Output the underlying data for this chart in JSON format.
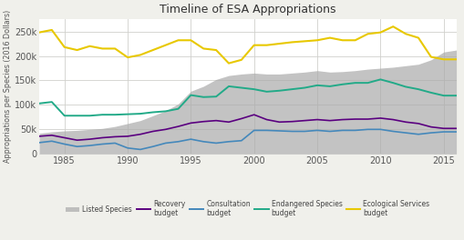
{
  "title": "Timeline of ESA Appropriations",
  "ylabel": "Appropriations per Species (2016 Dollars)",
  "xlim": [
    1983,
    2016
  ],
  "ylim": [
    0,
    275000
  ],
  "yticks": [
    0,
    50000,
    100000,
    150000,
    200000,
    250000
  ],
  "ytick_labels": [
    "0",
    "50k",
    "100k",
    "150k",
    "200k",
    "250k"
  ],
  "xticks": [
    1985,
    1990,
    1995,
    2000,
    2005,
    2010,
    2015
  ],
  "background_color": "#f0f0eb",
  "plot_bg_color": "#ffffff",
  "grid_color": "#d0d0cc",
  "years": [
    1983,
    1984,
    1985,
    1986,
    1987,
    1988,
    1989,
    1990,
    1991,
    1992,
    1993,
    1994,
    1995,
    1996,
    1997,
    1998,
    1999,
    2000,
    2001,
    2002,
    2003,
    2004,
    2005,
    2006,
    2007,
    2008,
    2009,
    2010,
    2011,
    2012,
    2013,
    2014,
    2015,
    2016
  ],
  "listed_species": [
    42000,
    45000,
    47000,
    48000,
    50000,
    52000,
    56000,
    62000,
    68000,
    78000,
    88000,
    102000,
    128000,
    138000,
    152000,
    160000,
    163000,
    165000,
    163000,
    163000,
    165000,
    167000,
    170000,
    167000,
    168000,
    170000,
    173000,
    175000,
    177000,
    180000,
    183000,
    192000,
    208000,
    212000
  ],
  "recovery_budget": [
    36000,
    38000,
    33000,
    28000,
    30000,
    33000,
    35000,
    36000,
    40000,
    46000,
    50000,
    56000,
    63000,
    66000,
    68000,
    65000,
    72000,
    80000,
    70000,
    65000,
    66000,
    68000,
    70000,
    68000,
    70000,
    71000,
    71000,
    73000,
    70000,
    65000,
    62000,
    55000,
    52000,
    52000
  ],
  "consultation_budget": [
    23000,
    26000,
    20000,
    15000,
    17000,
    20000,
    22000,
    12000,
    9000,
    15000,
    22000,
    25000,
    30000,
    25000,
    22000,
    25000,
    27000,
    48000,
    48000,
    47000,
    46000,
    46000,
    48000,
    46000,
    48000,
    48000,
    50000,
    50000,
    46000,
    43000,
    40000,
    43000,
    45000,
    45000
  ],
  "endangered_species": [
    103000,
    106000,
    78000,
    78000,
    78000,
    80000,
    80000,
    81000,
    82000,
    85000,
    87000,
    92000,
    120000,
    116000,
    117000,
    138000,
    135000,
    132000,
    127000,
    129000,
    132000,
    135000,
    140000,
    138000,
    142000,
    145000,
    145000,
    152000,
    145000,
    137000,
    132000,
    125000,
    119000,
    119000
  ],
  "ecological_services": [
    248000,
    253000,
    218000,
    212000,
    220000,
    215000,
    215000,
    197000,
    202000,
    212000,
    222000,
    232000,
    232000,
    215000,
    212000,
    185000,
    192000,
    222000,
    222000,
    225000,
    228000,
    230000,
    232000,
    237000,
    232000,
    232000,
    245000,
    248000,
    260000,
    245000,
    237000,
    198000,
    193000,
    193000
  ],
  "listed_color": "#aaaaaa",
  "recovery_color": "#5a0080",
  "consultation_color": "#4488bb",
  "endangered_color": "#22aa88",
  "ecological_color": "#e8c800"
}
